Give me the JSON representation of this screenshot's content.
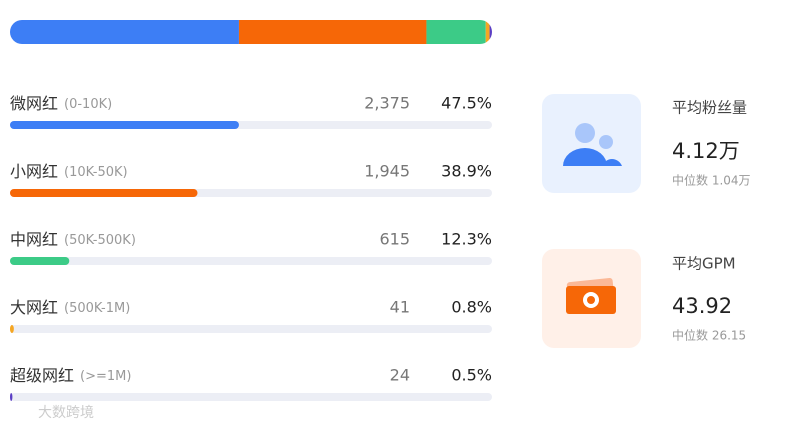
{
  "chart_data": {
    "type": "progress",
    "categories": [
      "微网红",
      "小网红",
      "中网红",
      "大网红",
      "超级网红"
    ],
    "ranges": [
      "(0-10K)",
      "(10K-50K)",
      "(50K-500K)",
      "(500K-1M)",
      "(>=1M)"
    ],
    "counts": [
      "2,375",
      "1,945",
      "615",
      "41",
      "24"
    ],
    "values": [
      47.5,
      38.9,
      12.3,
      0.8,
      0.5
    ],
    "value_labels": [
      "47.5%",
      "38.9%",
      "12.3%",
      "0.8%",
      "0.5%"
    ],
    "colors": [
      "#3d7ef5",
      "#f66707",
      "#3ccb87",
      "#f5a623",
      "#5b3fc4"
    ],
    "xlim": [
      0,
      100
    ]
  },
  "cards": [
    {
      "title": "平均粉丝量",
      "value": "4.12万",
      "median": "中位数 1.04万"
    },
    {
      "title": "平均GPM",
      "value": "43.92",
      "median": "中位数 26.15"
    }
  ],
  "watermark": "大数跨境"
}
